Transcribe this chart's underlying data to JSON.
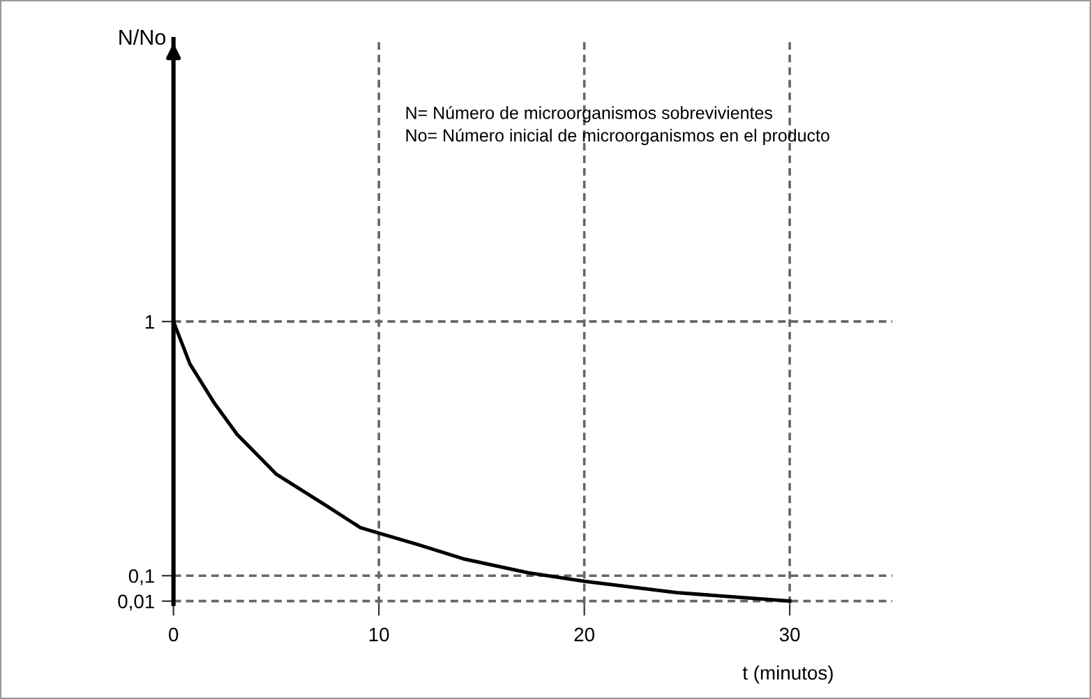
{
  "chart_data": {
    "type": "line",
    "xlabel": "t (minutos)",
    "ylabel": "N/No",
    "x": [
      0,
      0.8,
      2,
      3.1,
      5,
      7.4,
      9.1,
      11.9,
      14.1,
      17.3,
      20,
      24.5,
      30
    ],
    "series": [
      {
        "color": "#000000",
        "values": [
          1,
          0.85,
          0.71,
          0.6,
          0.46,
          0.35,
          0.27,
          0.21,
          0.16,
          0.11,
          0.08,
          0.04,
          0.01
        ]
      }
    ],
    "xlim": [
      0,
      35
    ],
    "ylim": [
      0,
      2
    ],
    "xticks": [
      0,
      10,
      20,
      30
    ],
    "yticks": [
      1,
      {
        "value": 0.1,
        "label": "0,1"
      },
      {
        "value": 0.01,
        "label": "0,01"
      }
    ],
    "grid": true,
    "marker": "none",
    "line_style": "solid",
    "annotations": [
      "N= Número de microorganismos sobrevivientes",
      "No= Número inicial de microorganismos en el producto"
    ]
  }
}
